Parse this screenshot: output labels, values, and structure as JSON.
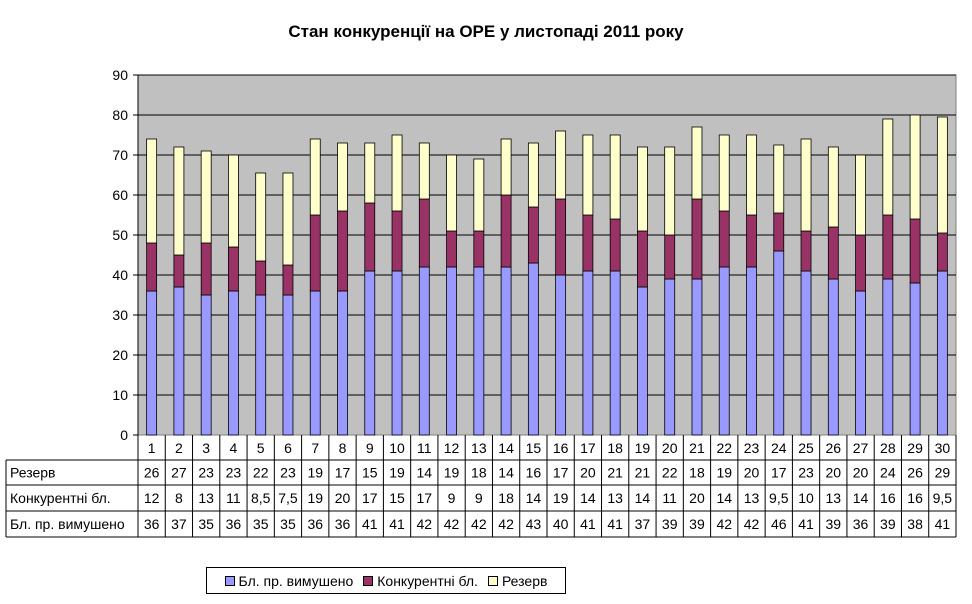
{
  "chart_data": {
    "type": "bar",
    "stacked": true,
    "title": "Стан конкуренції на ОРЕ  у листопаді 2011 року",
    "ylim": [
      0,
      90
    ],
    "yticks": [
      0,
      10,
      20,
      30,
      40,
      50,
      60,
      70,
      80,
      90
    ],
    "grid": true,
    "plot_background": "#c0c0c0",
    "legend_position": "bottom",
    "data_table": true,
    "categories": [
      "1",
      "2",
      "3",
      "4",
      "5",
      "6",
      "7",
      "8",
      "9",
      "10",
      "11",
      "12",
      "13",
      "14",
      "15",
      "16",
      "17",
      "18",
      "19",
      "20",
      "21",
      "22",
      "23",
      "24",
      "25",
      "26",
      "27",
      "28",
      "29",
      "30"
    ],
    "series": [
      {
        "name": "Бл. пр. вимушено",
        "color": "#9999ff",
        "values": [
          36,
          37,
          35,
          36,
          35,
          35,
          36,
          36,
          41,
          41,
          42,
          42,
          42,
          42,
          43,
          40,
          41,
          41,
          37,
          39,
          39,
          42,
          42,
          46,
          41,
          39,
          36,
          39,
          38,
          41
        ],
        "labels": [
          "36",
          "37",
          "35",
          "36",
          "35",
          "35",
          "36",
          "36",
          "41",
          "41",
          "42",
          "42",
          "42",
          "42",
          "43",
          "40",
          "41",
          "41",
          "37",
          "39",
          "39",
          "42",
          "42",
          "46",
          "41",
          "39",
          "36",
          "39",
          "38",
          "41"
        ]
      },
      {
        "name": "Конкурентні бл.",
        "color": "#993366",
        "values": [
          12,
          8,
          13,
          11,
          8.5,
          7.5,
          19,
          20,
          17,
          15,
          17,
          9,
          9,
          18,
          14,
          19,
          14,
          13,
          14,
          11,
          20,
          14,
          13,
          9.5,
          10,
          13,
          14,
          16,
          16,
          9.5
        ],
        "labels": [
          "12",
          "8",
          "13",
          "11",
          "8,5",
          "7,5",
          "19",
          "20",
          "17",
          "15",
          "17",
          "9",
          "9",
          "18",
          "14",
          "19",
          "14",
          "13",
          "14",
          "11",
          "20",
          "14",
          "13",
          "9,5",
          "10",
          "13",
          "14",
          "16",
          "16",
          "9,5"
        ]
      },
      {
        "name": "Резерв",
        "color": "#ffffcc",
        "values": [
          26,
          27,
          23,
          23,
          22,
          23,
          19,
          17,
          15,
          19,
          14,
          19,
          18,
          14,
          16,
          17,
          20,
          21,
          21,
          22,
          18,
          19,
          20,
          17,
          23,
          20,
          20,
          24,
          26,
          29
        ],
        "labels": [
          "26",
          "27",
          "23",
          "23",
          "22",
          "23",
          "19",
          "17",
          "15",
          "19",
          "14",
          "19",
          "18",
          "14",
          "16",
          "17",
          "20",
          "21",
          "21",
          "22",
          "18",
          "19",
          "20",
          "17",
          "23",
          "20",
          "20",
          "24",
          "26",
          "29"
        ]
      }
    ]
  }
}
